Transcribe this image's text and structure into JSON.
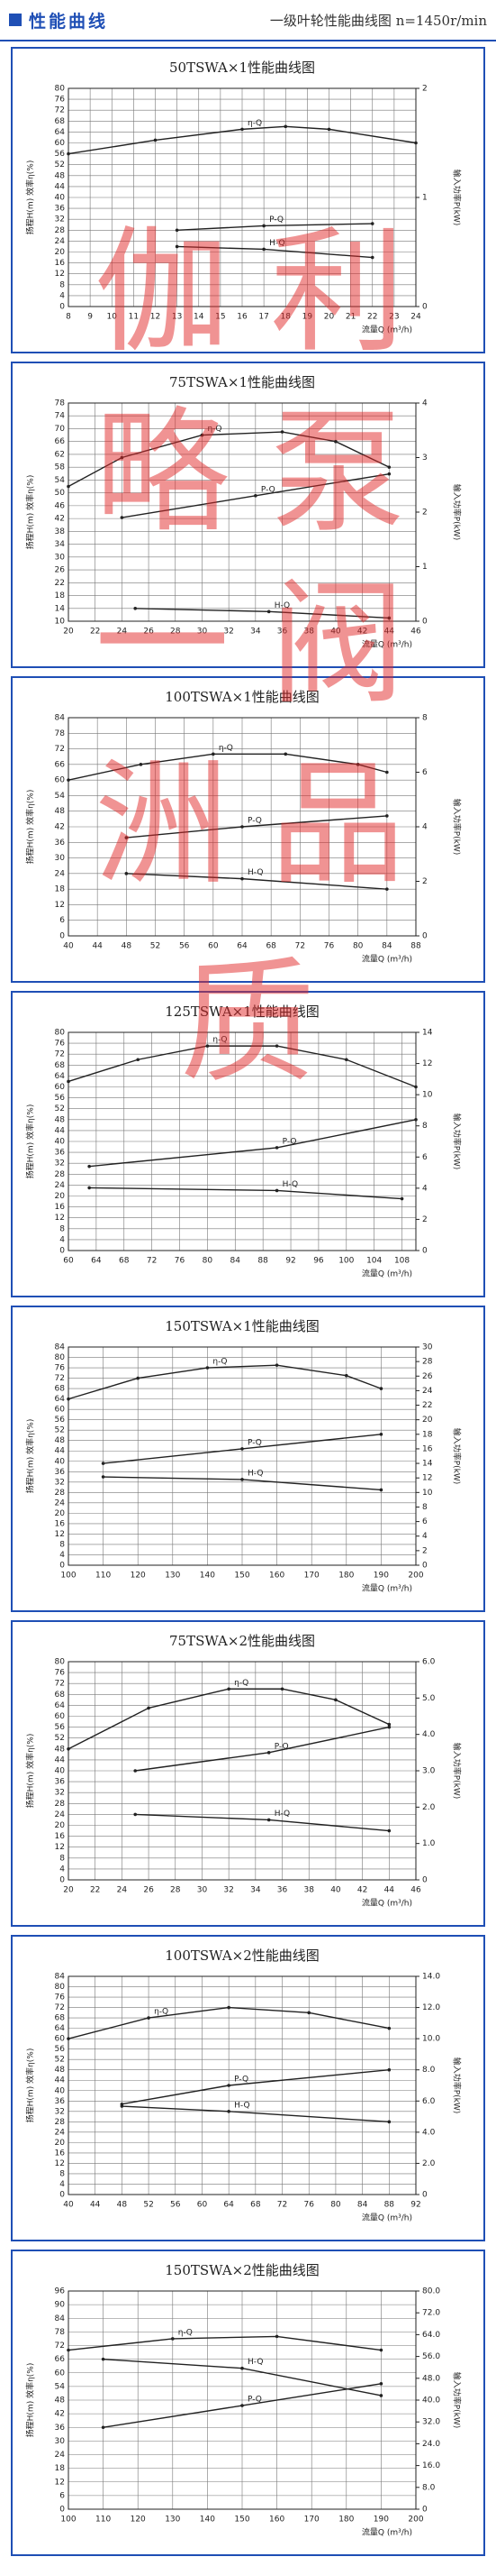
{
  "header": {
    "title": "性能曲线",
    "subtitle": "一级叶轮性能曲线图 n=1450r/min"
  },
  "watermark": [
    "伽",
    "利",
    "略",
    "泵",
    "一",
    "阀",
    "洲",
    "品",
    "质"
  ],
  "chart_data": [
    {
      "type": "line",
      "title": "50TSWA×1性能曲线图",
      "y_label": "扬程H(m) 效率η(%)",
      "y2_label": "输入功率P(kW)",
      "x_label": "流量Q (m³/h)",
      "xlim": [
        8,
        24
      ],
      "xticks": [
        8,
        9,
        10,
        11,
        12,
        13,
        14,
        15,
        16,
        17,
        18,
        19,
        20,
        21,
        22,
        23,
        24
      ],
      "ylim": [
        0,
        80
      ],
      "yticks": [
        0,
        4,
        8,
        12,
        16,
        20,
        24,
        28,
        32,
        36,
        40,
        44,
        48,
        52,
        56,
        60,
        64,
        68,
        72,
        76,
        80
      ],
      "y2lim": [
        0,
        2
      ],
      "y2ticks": [
        0,
        1,
        2
      ],
      "grid": true,
      "series": [
        {
          "name": "η-Q",
          "color": "#222",
          "x": [
            8,
            12,
            16,
            18,
            20,
            24
          ],
          "values": [
            56,
            61,
            65,
            66,
            65,
            60
          ]
        },
        {
          "name": "P-Q",
          "color": "#222",
          "axis": "y2",
          "x": [
            13,
            17,
            22
          ],
          "values": [
            0.7,
            0.74,
            0.76
          ]
        },
        {
          "name": "H-Q",
          "color": "#222",
          "x": [
            13,
            17,
            22
          ],
          "values": [
            22,
            21,
            18
          ]
        }
      ]
    },
    {
      "type": "line",
      "title": "75TSWA×1性能曲线图",
      "y_label": "扬程H(m) 效率η(%)",
      "y2_label": "输入功率P(kW)",
      "x_label": "流量Q (m³/h)",
      "xlim": [
        20,
        46
      ],
      "xticks": [
        20,
        22,
        24,
        26,
        28,
        30,
        32,
        34,
        36,
        38,
        40,
        42,
        44,
        46
      ],
      "ylim": [
        10,
        78
      ],
      "yticks": [
        10,
        14,
        18,
        22,
        26,
        30,
        34,
        38,
        42,
        46,
        50,
        54,
        58,
        62,
        66,
        70,
        74,
        78
      ],
      "y2lim": [
        0,
        4
      ],
      "y2ticks": [
        0,
        1,
        2,
        3,
        4
      ],
      "grid": true,
      "series": [
        {
          "name": "η-Q",
          "color": "#222",
          "x": [
            20,
            24,
            30,
            36,
            40,
            44
          ],
          "values": [
            52,
            61,
            68,
            69,
            66,
            58
          ]
        },
        {
          "name": "P-Q",
          "color": "#222",
          "axis": "y2",
          "x": [
            24,
            34,
            44
          ],
          "values": [
            1.9,
            2.3,
            2.7
          ]
        },
        {
          "name": "H-Q",
          "color": "#222",
          "x": [
            25,
            35,
            44
          ],
          "values": [
            14,
            13,
            11
          ]
        }
      ]
    },
    {
      "type": "line",
      "title": "100TSWA×1性能曲线图",
      "y_label": "扬程H(m) 效率η(%)",
      "y2_label": "输入功率P(kW)",
      "x_label": "流量Q (m³/h)",
      "xlim": [
        40,
        88
      ],
      "xticks": [
        40,
        44,
        48,
        52,
        56,
        60,
        64,
        68,
        72,
        76,
        80,
        84,
        88
      ],
      "ylim": [
        0,
        84
      ],
      "yticks": [
        0,
        6,
        12,
        18,
        24,
        30,
        36,
        42,
        48,
        54,
        60,
        66,
        72,
        78,
        84
      ],
      "y2lim": [
        0,
        8
      ],
      "y2ticks": [
        0,
        2,
        4,
        6,
        8
      ],
      "grid": true,
      "series": [
        {
          "name": "η-Q",
          "color": "#222",
          "x": [
            40,
            50,
            60,
            70,
            80,
            84
          ],
          "values": [
            60,
            66,
            70,
            70,
            66,
            63
          ]
        },
        {
          "name": "P-Q",
          "color": "#222",
          "axis": "y2",
          "x": [
            48,
            64,
            84
          ],
          "values": [
            3.6,
            4.0,
            4.4
          ]
        },
        {
          "name": "H-Q",
          "color": "#222",
          "x": [
            48,
            64,
            84
          ],
          "values": [
            24,
            22,
            18
          ]
        }
      ]
    },
    {
      "type": "line",
      "title": "125TSWA×1性能曲线图",
      "y_label": "扬程H(m) 效率η(%)",
      "y2_label": "输入功率P(kW)",
      "x_label": "流量Q (m³/h)",
      "xlim": [
        60,
        110
      ],
      "xticks": [
        60,
        64,
        68,
        72,
        76,
        80,
        84,
        88,
        92,
        96,
        100,
        104,
        108
      ],
      "ylim": [
        0,
        80
      ],
      "yticks": [
        0,
        4,
        8,
        12,
        16,
        20,
        24,
        28,
        32,
        36,
        40,
        44,
        48,
        52,
        56,
        60,
        64,
        68,
        72,
        76,
        80
      ],
      "y2lim": [
        0,
        14
      ],
      "y2ticks": [
        0,
        2,
        4,
        6,
        8,
        10,
        12,
        14
      ],
      "grid": true,
      "series": [
        {
          "name": "η-Q",
          "color": "#222",
          "x": [
            60,
            70,
            80,
            90,
            100,
            110
          ],
          "values": [
            62,
            70,
            75,
            75,
            70,
            60
          ]
        },
        {
          "name": "P-Q",
          "color": "#222",
          "axis": "y2",
          "x": [
            63,
            90,
            110
          ],
          "values": [
            5.4,
            6.6,
            8.4
          ]
        },
        {
          "name": "H-Q",
          "color": "#222",
          "x": [
            63,
            90,
            108
          ],
          "values": [
            23,
            22,
            19
          ]
        }
      ]
    },
    {
      "type": "line",
      "title": "150TSWA×1性能曲线图",
      "y_label": "扬程H(m) 效率η(%)",
      "y2_label": "输入功率P(kW)",
      "x_label": "流量Q (m³/h)",
      "xlim": [
        100,
        200
      ],
      "xticks": [
        100,
        110,
        120,
        130,
        140,
        150,
        160,
        170,
        180,
        190,
        200
      ],
      "ylim": [
        0,
        84
      ],
      "yticks": [
        0,
        4,
        8,
        12,
        16,
        20,
        24,
        28,
        32,
        36,
        40,
        44,
        48,
        52,
        56,
        60,
        64,
        68,
        72,
        76,
        80,
        84
      ],
      "y2lim": [
        0,
        30
      ],
      "y2ticks": [
        0,
        2,
        4,
        6,
        8,
        10,
        12,
        14,
        16,
        18,
        20,
        22,
        24,
        26,
        28,
        30
      ],
      "grid": true,
      "series": [
        {
          "name": "η-Q",
          "color": "#222",
          "x": [
            100,
            120,
            140,
            160,
            180,
            190
          ],
          "values": [
            64,
            72,
            76,
            77,
            73,
            68
          ]
        },
        {
          "name": "P-Q",
          "color": "#222",
          "axis": "y2",
          "x": [
            110,
            150,
            190
          ],
          "values": [
            14,
            16,
            18
          ]
        },
        {
          "name": "H-Q",
          "color": "#222",
          "x": [
            110,
            150,
            190
          ],
          "values": [
            34,
            33,
            29
          ]
        }
      ]
    },
    {
      "type": "line",
      "title": "75TSWA×2性能曲线图",
      "y_label": "扬程H(m) 效率η(%)",
      "y2_label": "输入功率P(kW)",
      "x_label": "流量Q (m³/h)",
      "xlim": [
        20,
        46
      ],
      "xticks": [
        20,
        22,
        24,
        26,
        28,
        30,
        32,
        34,
        36,
        38,
        40,
        42,
        44,
        46
      ],
      "ylim": [
        0,
        80
      ],
      "yticks": [
        0,
        4,
        8,
        12,
        16,
        20,
        24,
        28,
        32,
        36,
        40,
        44,
        48,
        52,
        56,
        60,
        64,
        68,
        72,
        76,
        80
      ],
      "y2lim": [
        0,
        6
      ],
      "y2ticks": [
        0,
        {
          "value": 1,
          "label": "1.0"
        },
        {
          "value": 2,
          "label": "2.0"
        },
        {
          "value": 3,
          "label": "3.0"
        },
        {
          "value": 4,
          "label": "4.0"
        },
        {
          "value": 5,
          "label": "5.0"
        },
        {
          "value": 6,
          "label": "6.0"
        }
      ],
      "grid": true,
      "series": [
        {
          "name": "η-Q",
          "color": "#222",
          "x": [
            20,
            26,
            32,
            36,
            40,
            44
          ],
          "values": [
            48,
            63,
            70,
            70,
            66,
            57
          ]
        },
        {
          "name": "P-Q",
          "color": "#222",
          "axis": "y2",
          "x": [
            25,
            35,
            44
          ],
          "values": [
            3.0,
            3.5,
            4.2
          ]
        },
        {
          "name": "H-Q",
          "color": "#222",
          "x": [
            25,
            35,
            44
          ],
          "values": [
            24,
            22,
            18
          ]
        }
      ]
    },
    {
      "type": "line",
      "title": "100TSWA×2性能曲线图",
      "y_label": "扬程H(m) 效率η(%)",
      "y2_label": "输入功率P(kW)",
      "x_label": "流量Q (m³/h)",
      "xlim": [
        40,
        92
      ],
      "xticks": [
        40,
        44,
        48,
        52,
        56,
        60,
        64,
        68,
        72,
        76,
        80,
        84,
        88,
        92
      ],
      "ylim": [
        0,
        84
      ],
      "yticks": [
        0,
        4,
        8,
        12,
        16,
        20,
        24,
        28,
        32,
        36,
        40,
        44,
        48,
        52,
        56,
        60,
        64,
        68,
        72,
        76,
        80,
        84
      ],
      "y2lim": [
        0,
        14
      ],
      "y2ticks": [
        0,
        {
          "value": 2,
          "label": "2.0"
        },
        {
          "value": 4,
          "label": "4.0"
        },
        {
          "value": 6,
          "label": "6.0"
        },
        {
          "value": 8,
          "label": "8.0"
        },
        {
          "value": 10,
          "label": "10.0"
        },
        {
          "value": 12,
          "label": "12.0"
        },
        {
          "value": 14,
          "label": "14.0"
        }
      ],
      "grid": true,
      "series": [
        {
          "name": "η-Q",
          "color": "#222",
          "x": [
            40,
            52,
            64,
            76,
            88
          ],
          "values": [
            60,
            68,
            72,
            70,
            64
          ]
        },
        {
          "name": "P-Q",
          "color": "#222",
          "axis": "y2",
          "x": [
            48,
            64,
            88
          ],
          "values": [
            5.8,
            7.0,
            8.0
          ]
        },
        {
          "name": "H-Q",
          "color": "#222",
          "x": [
            48,
            64,
            88
          ],
          "values": [
            34,
            32,
            28
          ]
        }
      ]
    },
    {
      "type": "line",
      "title": "150TSWA×2性能曲线图",
      "y_label": "扬程H(m) 效率η(%)",
      "y2_label": "输入功率P(kW)",
      "x_label": "流量Q (m³/h)",
      "xlim": [
        100,
        200
      ],
      "xticks": [
        100,
        110,
        120,
        130,
        140,
        150,
        160,
        170,
        180,
        190,
        200
      ],
      "ylim": [
        0,
        96
      ],
      "yticks": [
        0,
        6,
        12,
        18,
        24,
        30,
        36,
        42,
        48,
        54,
        60,
        66,
        72,
        78,
        84,
        90,
        96
      ],
      "y2lim": [
        0,
        80
      ],
      "y2ticks": [
        0,
        {
          "value": 8,
          "label": "8.0"
        },
        {
          "value": 16,
          "label": "16.0"
        },
        {
          "value": 24,
          "label": "24.0"
        },
        {
          "value": 32,
          "label": "32.0"
        },
        {
          "value": 40,
          "label": "40.0"
        },
        {
          "value": 48,
          "label": "48.0"
        },
        {
          "value": 56,
          "label": "56.0"
        },
        {
          "value": 64,
          "label": "64.0"
        },
        {
          "value": 72,
          "label": "72.0"
        },
        {
          "value": 80,
          "label": "80.0"
        }
      ],
      "grid": true,
      "series": [
        {
          "name": "η-Q",
          "color": "#222",
          "x": [
            100,
            130,
            160,
            190
          ],
          "values": [
            70,
            75,
            76,
            70
          ]
        },
        {
          "name": "H-Q",
          "color": "#222",
          "x": [
            110,
            150,
            190
          ],
          "values": [
            66,
            62,
            50
          ]
        },
        {
          "name": "P-Q",
          "color": "#222",
          "axis": "y2",
          "x": [
            110,
            150,
            190
          ],
          "values": [
            30,
            38,
            46
          ]
        }
      ]
    }
  ]
}
